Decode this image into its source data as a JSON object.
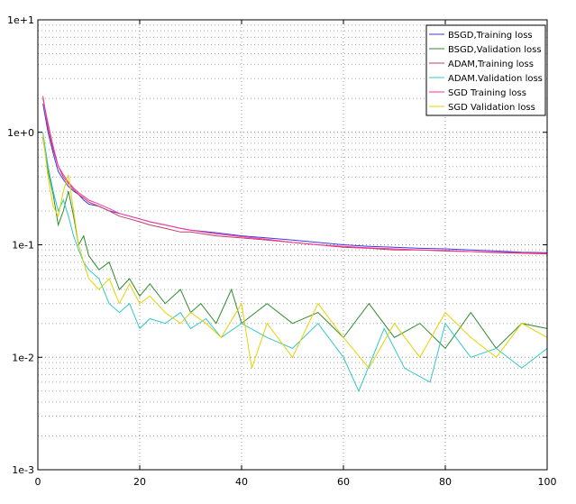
{
  "chart_data": {
    "type": "line",
    "title": "",
    "xlabel": "",
    "ylabel": "",
    "xlim": [
      0,
      100
    ],
    "ylim": [
      0.001,
      10
    ],
    "yscale": "log",
    "grid": true,
    "legend_position": "top-right",
    "x_ticks": [
      "0",
      "20",
      "40",
      "60",
      "80",
      "100"
    ],
    "y_ticks": [
      "1e-3",
      "1e-2",
      "1e-1",
      "1e+0",
      "1e+1"
    ],
    "series": [
      {
        "name": "BSGD,Training loss",
        "color": "#3a3ae6",
        "values": [
          [
            1,
            1.8
          ],
          [
            2,
            1.0
          ],
          [
            3,
            0.65
          ],
          [
            4,
            0.45
          ],
          [
            5,
            0.38
          ],
          [
            6,
            0.33
          ],
          [
            7,
            0.3
          ],
          [
            8,
            0.28
          ],
          [
            9,
            0.25
          ],
          [
            10,
            0.23
          ],
          [
            12,
            0.22
          ],
          [
            14,
            0.2
          ],
          [
            16,
            0.19
          ],
          [
            18,
            0.18
          ],
          [
            20,
            0.17
          ],
          [
            22,
            0.16
          ],
          [
            25,
            0.15
          ],
          [
            28,
            0.14
          ],
          [
            30,
            0.135
          ],
          [
            35,
            0.128
          ],
          [
            40,
            0.12
          ],
          [
            45,
            0.115
          ],
          [
            50,
            0.11
          ],
          [
            55,
            0.105
          ],
          [
            60,
            0.1
          ],
          [
            65,
            0.097
          ],
          [
            70,
            0.095
          ],
          [
            75,
            0.093
          ],
          [
            80,
            0.092
          ],
          [
            85,
            0.09
          ],
          [
            90,
            0.088
          ],
          [
            95,
            0.086
          ],
          [
            100,
            0.085
          ]
        ]
      },
      {
        "name": "BSGD,Validation loss",
        "color": "#2e8b2e",
        "values": [
          [
            1,
            0.9
          ],
          [
            2,
            0.45
          ],
          [
            3,
            0.28
          ],
          [
            4,
            0.15
          ],
          [
            5,
            0.2
          ],
          [
            6,
            0.3
          ],
          [
            7,
            0.18
          ],
          [
            8,
            0.1
          ],
          [
            9,
            0.12
          ],
          [
            10,
            0.08
          ],
          [
            12,
            0.06
          ],
          [
            14,
            0.07
          ],
          [
            16,
            0.04
          ],
          [
            18,
            0.05
          ],
          [
            20,
            0.035
          ],
          [
            22,
            0.045
          ],
          [
            25,
            0.03
          ],
          [
            28,
            0.04
          ],
          [
            30,
            0.025
          ],
          [
            32,
            0.03
          ],
          [
            35,
            0.02
          ],
          [
            38,
            0.04
          ],
          [
            40,
            0.02
          ],
          [
            45,
            0.03
          ],
          [
            50,
            0.02
          ],
          [
            55,
            0.025
          ],
          [
            60,
            0.015
          ],
          [
            65,
            0.03
          ],
          [
            70,
            0.015
          ],
          [
            75,
            0.02
          ],
          [
            80,
            0.012
          ],
          [
            85,
            0.025
          ],
          [
            90,
            0.012
          ],
          [
            95,
            0.02
          ],
          [
            100,
            0.018
          ]
        ]
      },
      {
        "name": "ADAM,Training loss",
        "color": "#c04060",
        "values": [
          [
            1,
            2.1
          ],
          [
            2,
            1.1
          ],
          [
            3,
            0.7
          ],
          [
            4,
            0.5
          ],
          [
            5,
            0.4
          ],
          [
            6,
            0.35
          ],
          [
            7,
            0.31
          ],
          [
            8,
            0.28
          ],
          [
            9,
            0.26
          ],
          [
            10,
            0.24
          ],
          [
            12,
            0.22
          ],
          [
            14,
            0.2
          ],
          [
            16,
            0.18
          ],
          [
            18,
            0.17
          ],
          [
            20,
            0.16
          ],
          [
            22,
            0.15
          ],
          [
            25,
            0.14
          ],
          [
            28,
            0.13
          ],
          [
            30,
            0.13
          ],
          [
            35,
            0.12
          ],
          [
            40,
            0.115
          ],
          [
            45,
            0.11
          ],
          [
            50,
            0.105
          ],
          [
            55,
            0.1
          ],
          [
            60,
            0.095
          ],
          [
            65,
            0.093
          ],
          [
            70,
            0.09
          ],
          [
            75,
            0.09
          ],
          [
            80,
            0.088
          ],
          [
            85,
            0.087
          ],
          [
            90,
            0.085
          ],
          [
            95,
            0.084
          ],
          [
            100,
            0.083
          ]
        ]
      },
      {
        "name": "ADAM.Validation loss",
        "color": "#30c8c8",
        "values": [
          [
            1,
            1.0
          ],
          [
            2,
            0.5
          ],
          [
            3,
            0.3
          ],
          [
            4,
            0.2
          ],
          [
            5,
            0.25
          ],
          [
            6,
            0.18
          ],
          [
            7,
            0.12
          ],
          [
            8,
            0.09
          ],
          [
            9,
            0.07
          ],
          [
            10,
            0.06
          ],
          [
            12,
            0.05
          ],
          [
            14,
            0.03
          ],
          [
            16,
            0.025
          ],
          [
            18,
            0.03
          ],
          [
            20,
            0.018
          ],
          [
            22,
            0.022
          ],
          [
            25,
            0.02
          ],
          [
            28,
            0.025
          ],
          [
            30,
            0.018
          ],
          [
            33,
            0.022
          ],
          [
            36,
            0.015
          ],
          [
            40,
            0.02
          ],
          [
            45,
            0.015
          ],
          [
            50,
            0.012
          ],
          [
            55,
            0.02
          ],
          [
            60,
            0.01
          ],
          [
            63,
            0.005
          ],
          [
            68,
            0.018
          ],
          [
            72,
            0.008
          ],
          [
            77,
            0.006
          ],
          [
            80,
            0.02
          ],
          [
            85,
            0.01
          ],
          [
            90,
            0.012
          ],
          [
            95,
            0.008
          ],
          [
            100,
            0.012
          ]
        ]
      },
      {
        "name": "SGD Training loss",
        "color": "#ff3399",
        "values": [
          [
            1,
            2.0
          ],
          [
            2,
            1.2
          ],
          [
            3,
            0.75
          ],
          [
            4,
            0.5
          ],
          [
            5,
            0.42
          ],
          [
            6,
            0.36
          ],
          [
            7,
            0.32
          ],
          [
            8,
            0.29
          ],
          [
            9,
            0.27
          ],
          [
            10,
            0.25
          ],
          [
            12,
            0.23
          ],
          [
            14,
            0.21
          ],
          [
            16,
            0.19
          ],
          [
            18,
            0.18
          ],
          [
            20,
            0.17
          ],
          [
            22,
            0.16
          ],
          [
            25,
            0.15
          ],
          [
            28,
            0.14
          ],
          [
            30,
            0.135
          ],
          [
            35,
            0.125
          ],
          [
            40,
            0.118
          ],
          [
            45,
            0.112
          ],
          [
            50,
            0.105
          ],
          [
            55,
            0.1
          ],
          [
            60,
            0.097
          ],
          [
            65,
            0.094
          ],
          [
            70,
            0.092
          ],
          [
            75,
            0.09
          ],
          [
            80,
            0.089
          ],
          [
            85,
            0.087
          ],
          [
            90,
            0.086
          ],
          [
            95,
            0.085
          ],
          [
            100,
            0.084
          ]
        ]
      },
      {
        "name": "SGD Validation loss",
        "color": "#e6d200",
        "values": [
          [
            1,
            0.95
          ],
          [
            2,
            0.4
          ],
          [
            3,
            0.22
          ],
          [
            4,
            0.18
          ],
          [
            5,
            0.3
          ],
          [
            6,
            0.42
          ],
          [
            7,
            0.2
          ],
          [
            8,
            0.1
          ],
          [
            9,
            0.07
          ],
          [
            10,
            0.05
          ],
          [
            12,
            0.04
          ],
          [
            14,
            0.05
          ],
          [
            16,
            0.03
          ],
          [
            18,
            0.045
          ],
          [
            20,
            0.03
          ],
          [
            22,
            0.035
          ],
          [
            25,
            0.025
          ],
          [
            28,
            0.02
          ],
          [
            30,
            0.025
          ],
          [
            33,
            0.02
          ],
          [
            36,
            0.015
          ],
          [
            40,
            0.03
          ],
          [
            42,
            0.008
          ],
          [
            45,
            0.02
          ],
          [
            50,
            0.01
          ],
          [
            55,
            0.03
          ],
          [
            60,
            0.015
          ],
          [
            65,
            0.008
          ],
          [
            70,
            0.02
          ],
          [
            75,
            0.01
          ],
          [
            80,
            0.025
          ],
          [
            85,
            0.015
          ],
          [
            90,
            0.01
          ],
          [
            95,
            0.02
          ],
          [
            100,
            0.015
          ]
        ]
      }
    ]
  }
}
